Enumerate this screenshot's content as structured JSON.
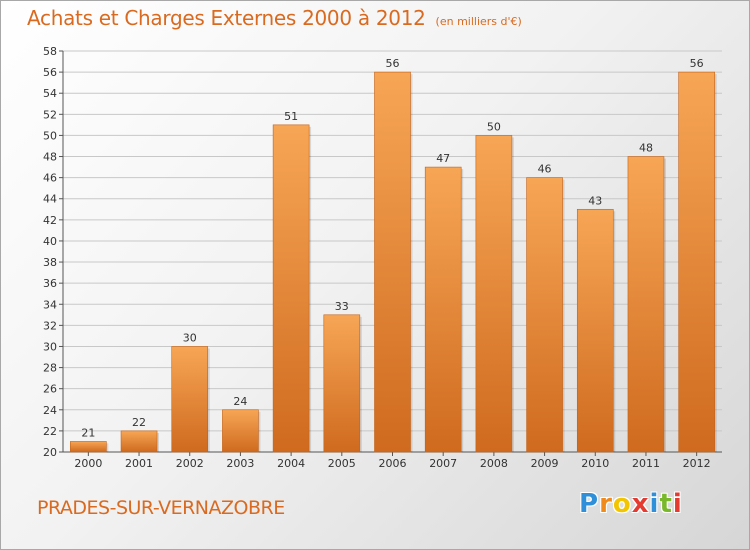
{
  "chart_data": {
    "type": "bar",
    "title": "Achats et Charges Externes 2000 à 2012",
    "unit_label": "(en milliers d'€)",
    "categories": [
      "2000",
      "2001",
      "2002",
      "2003",
      "2004",
      "2005",
      "2006",
      "2007",
      "2008",
      "2009",
      "2010",
      "2011",
      "2012"
    ],
    "values": [
      21,
      22,
      30,
      24,
      51,
      33,
      56,
      47,
      50,
      46,
      43,
      48,
      56
    ],
    "value_labels": [
      "21",
      "22",
      "30",
      "24",
      "51",
      "33",
      "56",
      "47",
      "50",
      "46",
      "43",
      "48",
      "56"
    ],
    "ylim": [
      20,
      58
    ],
    "yticks": [
      "20",
      "22",
      "24",
      "26",
      "28",
      "30",
      "32",
      "34",
      "36",
      "38",
      "40",
      "42",
      "44",
      "46",
      "48",
      "50",
      "52",
      "54",
      "56",
      "58"
    ],
    "grid": true,
    "legend": "none",
    "bar_color_top": "#f7a656",
    "bar_color_bottom": "#cf6a1e",
    "accent": "#d96a1f"
  },
  "commune": "PRADES-SUR-VERNAZOBRE",
  "logo": {
    "letters": [
      "P",
      "r",
      "o",
      "x",
      "i",
      "t",
      "i"
    ],
    "colors": [
      "#2f8fd8",
      "#f08a1c",
      "#f2c500",
      "#e53a2f",
      "#2f8fd8",
      "#7ab82b",
      "#e53a2f"
    ]
  }
}
